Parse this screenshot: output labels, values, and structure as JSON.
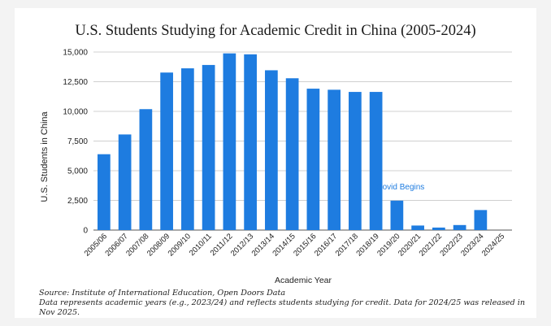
{
  "chart_data": {
    "type": "bar",
    "title": "U.S. Students Studying for Academic Credit in China (2005-2024)",
    "xlabel": "Academic Year",
    "ylabel": "U.S. Students in China",
    "ylim": [
      0,
      15000
    ],
    "yticks": [
      0,
      2500,
      5000,
      7500,
      10000,
      12500,
      15000
    ],
    "ytick_labels": [
      "0",
      "2,500",
      "5,000",
      "7,500",
      "10,000",
      "12,500",
      "15,000"
    ],
    "grid": true,
    "bar_color": "#1e7ce0",
    "categories": [
      "2005/06",
      "2006/07",
      "2007/08",
      "2008/09",
      "2009/10",
      "2010/11",
      "2011/12",
      "2012/13",
      "2013/14",
      "2014/15",
      "2015/16",
      "2016/17",
      "2017/18",
      "2018/19",
      "2019/20",
      "2020/21",
      "2021/22",
      "2022/23",
      "2023/24",
      "2024/25"
    ],
    "values": [
      6391,
      8055,
      10188,
      13271,
      13627,
      13910,
      14887,
      14807,
      13463,
      12790,
      11913,
      11823,
      11639,
      11639,
      2481,
      382,
      211,
      424,
      1687,
      0
    ],
    "annotations": [
      {
        "text": "Covid Begins",
        "category": "2019/20",
        "color": "#1e7ce0"
      }
    ]
  },
  "notes": {
    "source": "Source: Institute of International Education, Open Doors Data",
    "description": "Data represents academic years (e.g., 2023/24) and reflects students studying for credit. Data for 2024/25 was released in Nov 2025."
  }
}
